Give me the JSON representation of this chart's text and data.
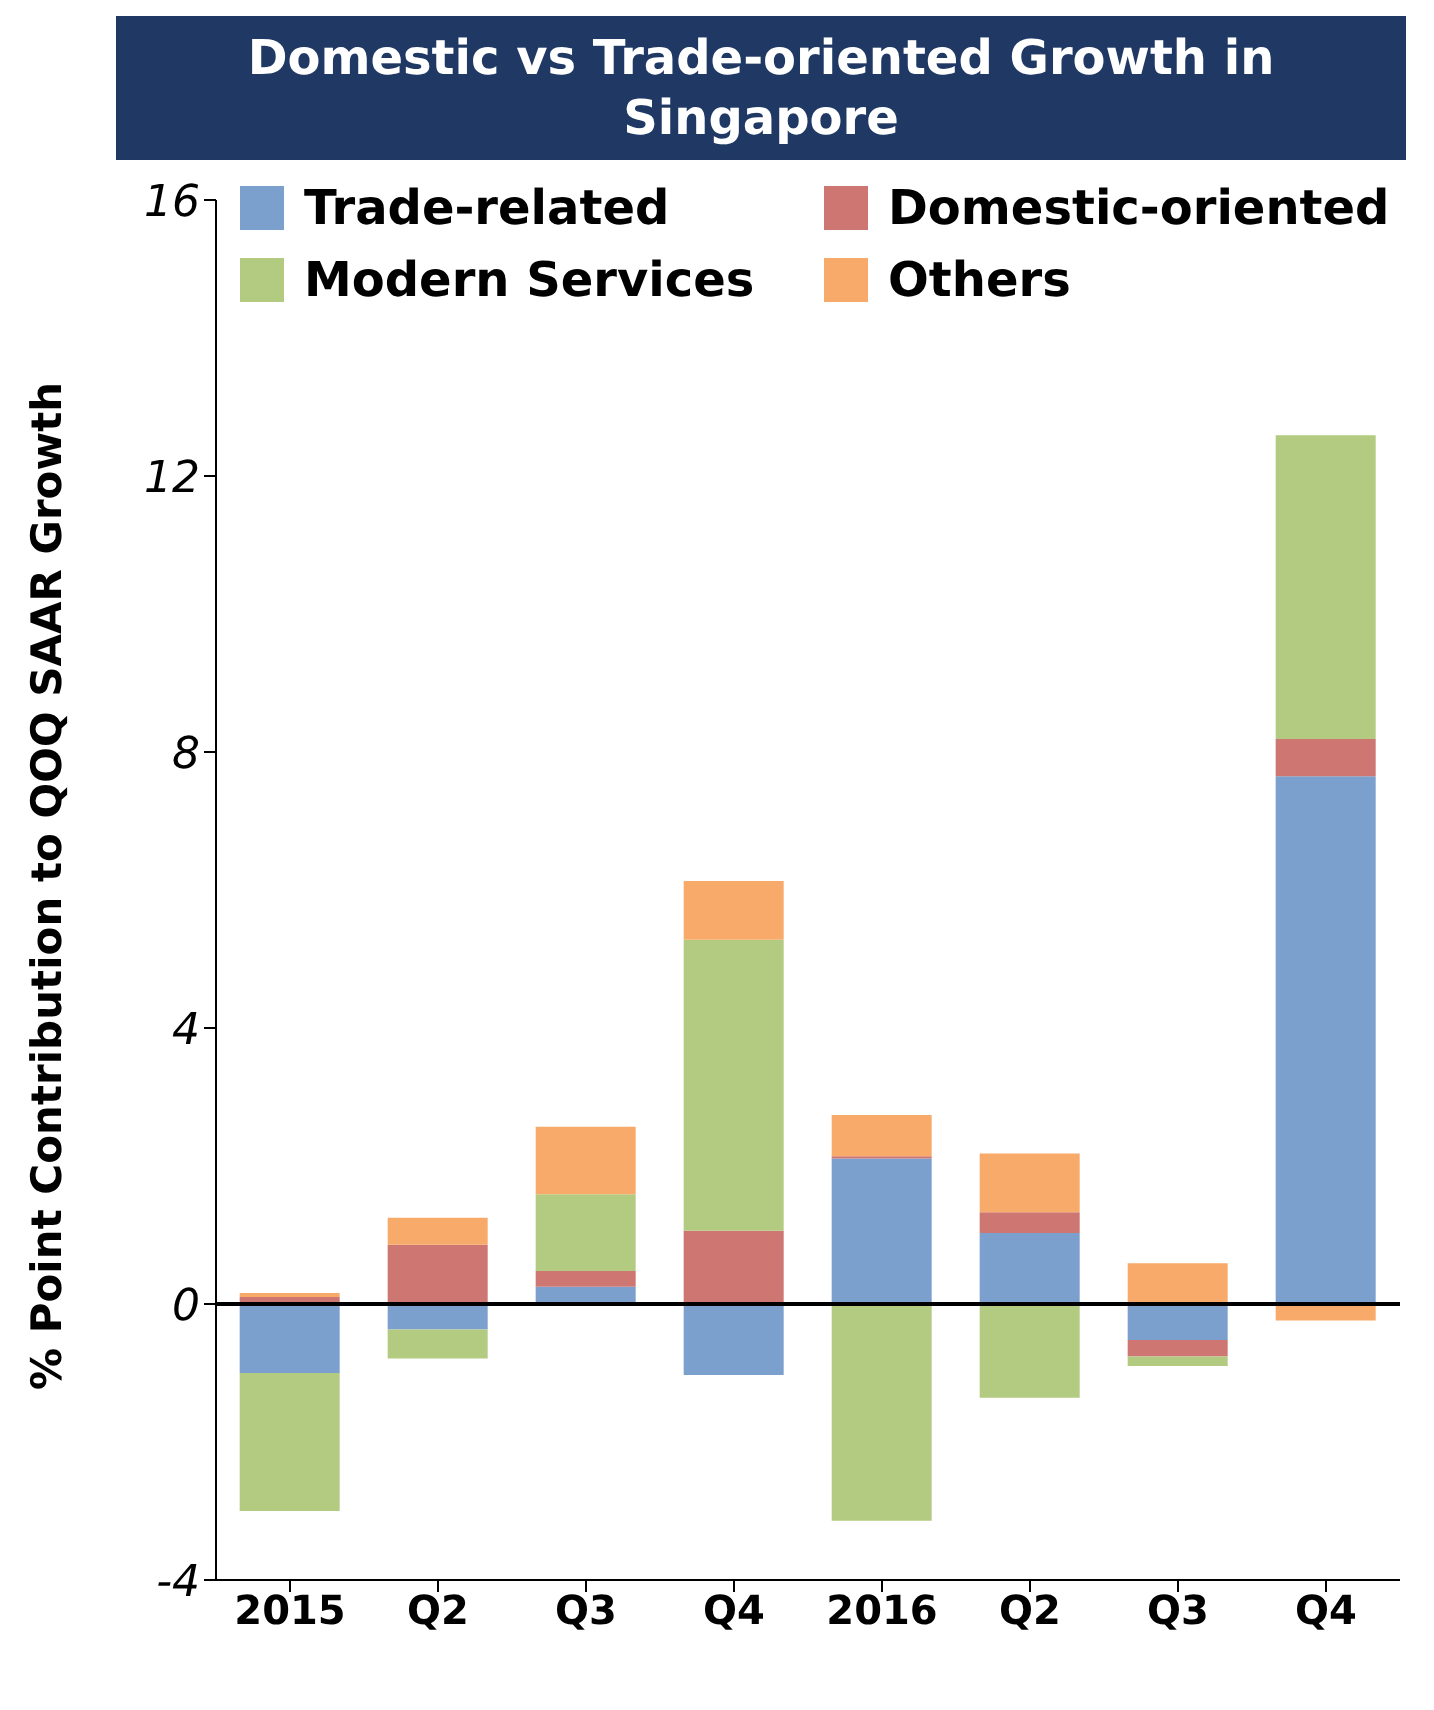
{
  "chart_data": {
    "type": "bar",
    "title": "Domestic vs Trade-oriented Growth in Singapore",
    "ylabel": "% Point Contribution to QOQ SAAR Growth",
    "categories": [
      "2015",
      "Q2",
      "Q3",
      "Q4",
      "2016",
      "Q2",
      "Q3",
      "Q4"
    ],
    "stacked": true,
    "series": [
      {
        "name": "Trade-related",
        "color": "#7ba0cd",
        "values": [
          -1.0,
          -0.37,
          0.25,
          -1.03,
          2.11,
          1.03,
          -0.52,
          7.65
        ]
      },
      {
        "name": "Domestic-oriented",
        "color": "#cd7672",
        "values": [
          0.1,
          0.86,
          0.23,
          1.06,
          0.03,
          0.3,
          -0.24,
          0.54
        ]
      },
      {
        "name": "Modern Services",
        "color": "#b3cb80",
        "values": [
          -2.0,
          -0.42,
          1.11,
          4.22,
          -3.14,
          -1.36,
          -0.14,
          4.4
        ]
      },
      {
        "name": "Others",
        "color": "#f8aa6a",
        "values": [
          0.06,
          0.39,
          0.98,
          0.85,
          0.6,
          0.85,
          0.59,
          -0.24
        ]
      }
    ],
    "ylim": [
      -4,
      16
    ],
    "yticks": [
      -4,
      0,
      4,
      8,
      12,
      16
    ],
    "legend": "top",
    "ref_lines": [
      {
        "axis": "y",
        "value": 0,
        "color": "#000000"
      }
    ]
  }
}
